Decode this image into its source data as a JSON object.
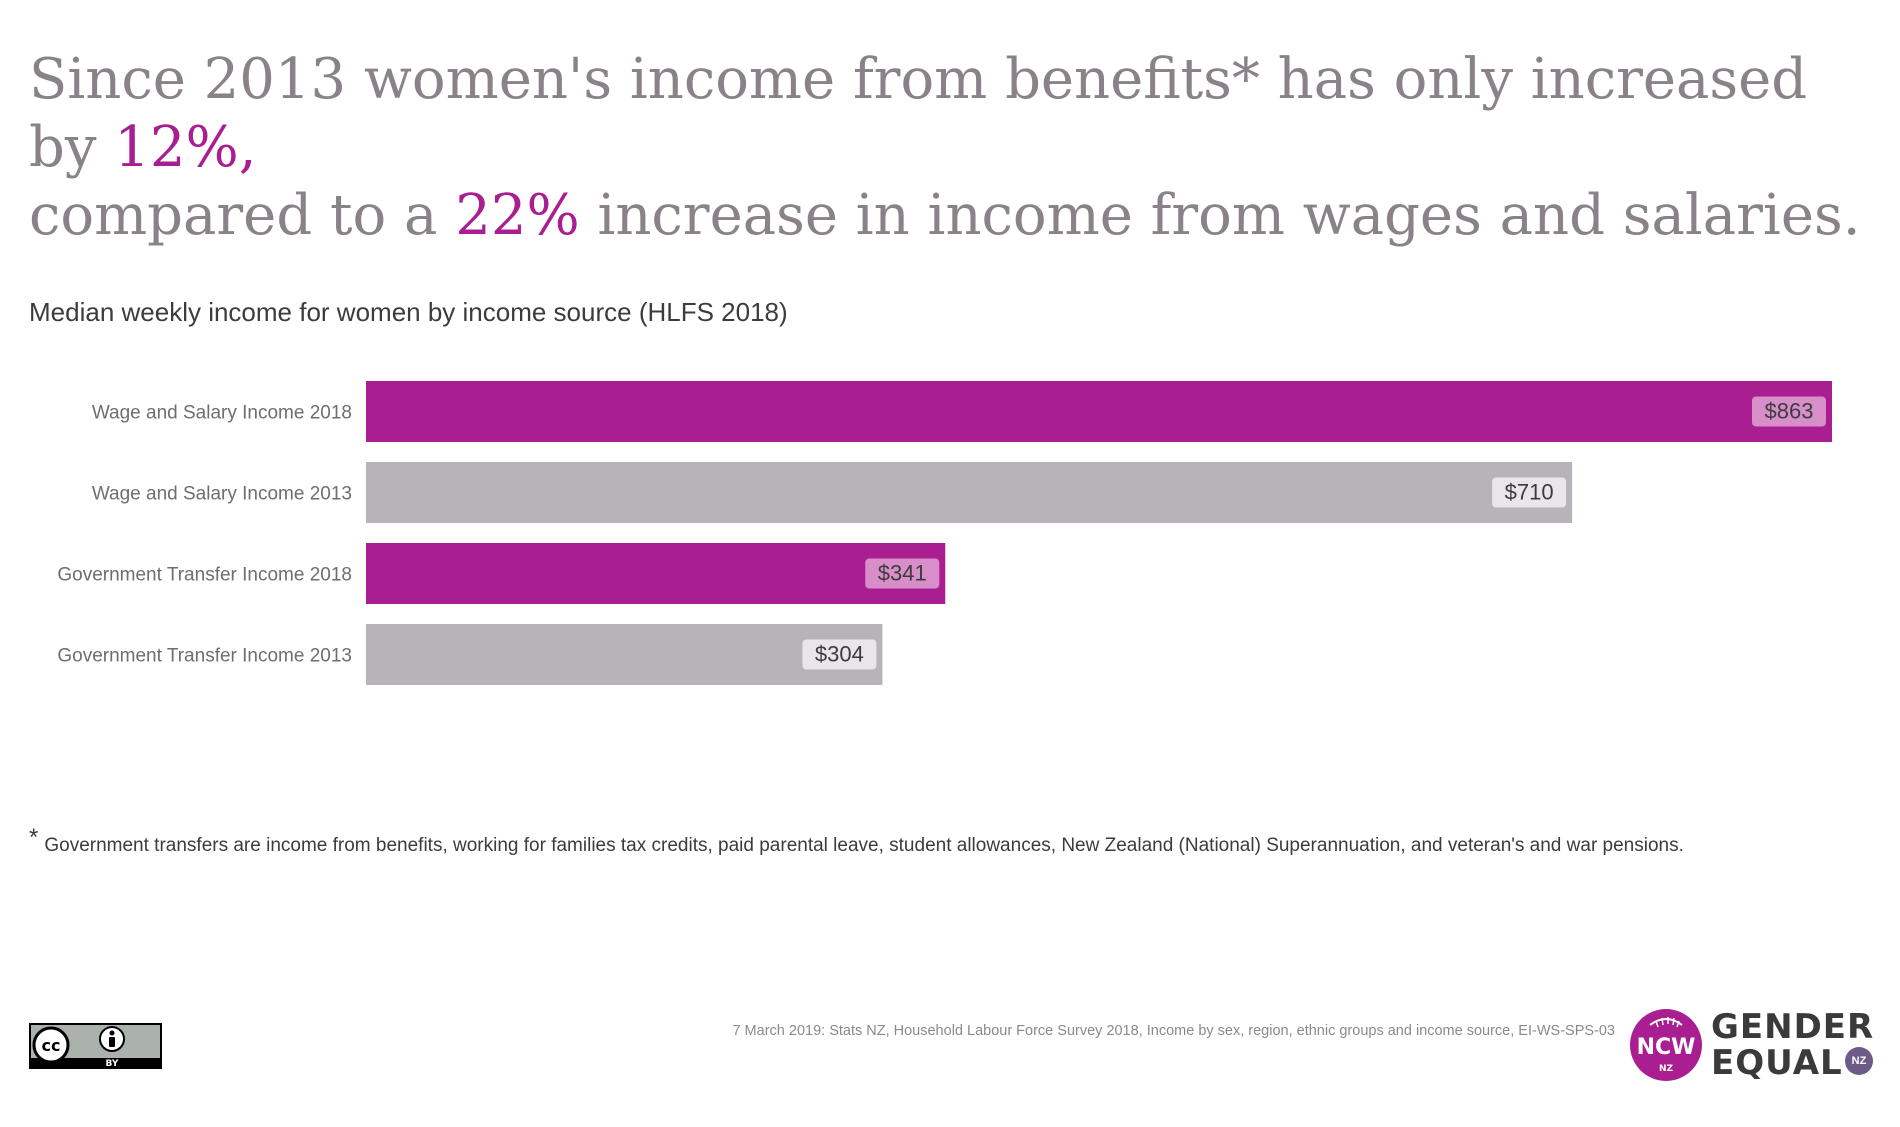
{
  "headline": {
    "part1": "Since 2013 women's income from benefits* has only increased by ",
    "pct_benefits": "12%,",
    "part2": "compared to a ",
    "pct_wages": "22%",
    "part3": " increase in income from wages and salaries."
  },
  "colors": {
    "accent": "#a91f92",
    "gray_bar": "#b8b2b9",
    "headline_gray": "#8a8289",
    "text_dark": "#3c3c3c"
  },
  "chart_data": {
    "type": "bar",
    "orientation": "horizontal",
    "title": "Median weekly income for women by income source (HLFS 2018)",
    "categories": [
      "Wage and Salary Income 2018",
      "Wage and Salary Income 2013",
      "Government Transfer Income 2018",
      "Government Transfer Income 2013"
    ],
    "values": [
      863,
      710,
      341,
      304
    ],
    "value_labels": [
      "$863",
      "$710",
      "$341",
      "$304"
    ],
    "bar_colors": [
      "#a91f92",
      "#b8b2b9",
      "#a91f92",
      "#b8b2b9"
    ],
    "xlim": [
      0,
      863
    ],
    "grid": false,
    "legend": "none"
  },
  "footnote": {
    "marker": "*",
    "text": "Government transfers are income from benefits, working for families tax credits, paid parental leave, student allowances, New Zealand (National) Superannuation, and veteran's and war pensions."
  },
  "source": "7 March 2019: Stats NZ, Household Labour Force Survey 2018, Income by sex, region, ethnic groups and income source, EI-WS-SPS-03",
  "license_badge": {
    "icon": "creative-commons-by-icon",
    "cc_text": "cc",
    "by_text": "BY"
  },
  "logo": {
    "line1": "GENDER",
    "line2": "EQUAL",
    "badge": "NZ",
    "monogram": "NCW",
    "monogram_sub": "NZ"
  }
}
